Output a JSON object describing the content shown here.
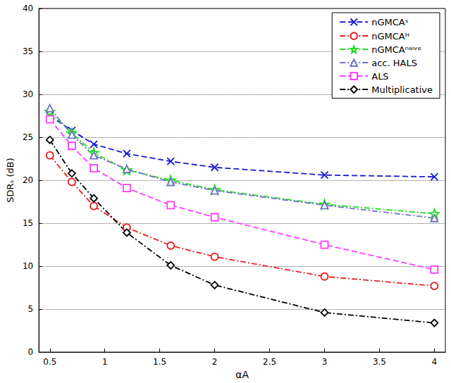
{
  "chart_data": {
    "type": "line",
    "x_label": "αA",
    "y_label": "SDRₛ (dB)",
    "x": [
      0.5,
      0.7,
      0.9,
      1.2,
      1.6,
      2,
      3,
      4
    ],
    "series": [
      {
        "name": "nGMCAˢ",
        "color": "#1a1ad6",
        "marker": "x",
        "line_style": "dashed",
        "values": [
          27.5,
          25.8,
          24.2,
          23.1,
          22.2,
          21.5,
          20.6,
          20.4
        ]
      },
      {
        "name": "nGMCAᴴ",
        "color": "#e82020",
        "marker": "circle",
        "line_style": "dashdot",
        "values": [
          22.9,
          19.8,
          17.0,
          14.5,
          12.4,
          11.1,
          8.8,
          7.7
        ]
      },
      {
        "name": "nGMCAⁿᵃⁱᵛᵉ",
        "color": "#22dd22",
        "marker": "star",
        "line_style": "dashdot",
        "values": [
          28.0,
          25.5,
          23.2,
          21.2,
          20.0,
          18.9,
          17.2,
          16.1
        ]
      },
      {
        "name": "acc. HALS",
        "color": "#7272c4",
        "marker": "triangle",
        "line_style": "dashdot",
        "values": [
          28.4,
          25.3,
          22.9,
          21.3,
          19.8,
          18.8,
          17.1,
          15.6
        ]
      },
      {
        "name": "ALS",
        "color": "#ff3cff",
        "marker": "square",
        "line_style": "dashed",
        "values": [
          27.1,
          24.0,
          21.4,
          19.1,
          17.1,
          15.7,
          12.5,
          9.6
        ]
      },
      {
        "name": "Multiplicative",
        "color": "#000000",
        "marker": "diamond",
        "line_style": "dashdot",
        "values": [
          24.7,
          20.8,
          17.9,
          13.9,
          10.1,
          7.8,
          4.6,
          3.4
        ]
      }
    ],
    "xlim": [
      0.4,
      4.1
    ],
    "xticks": [
      0.5,
      1,
      1.5,
      2,
      2.5,
      3,
      3.5,
      4
    ],
    "ylim": [
      0,
      40
    ],
    "yticks": [
      0,
      5,
      10,
      15,
      20,
      25,
      30,
      35,
      40
    ],
    "grid": true,
    "legend": "upper right"
  }
}
